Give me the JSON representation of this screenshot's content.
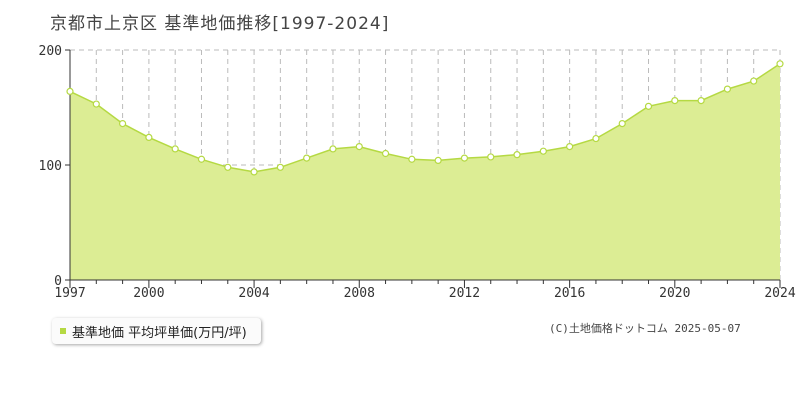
{
  "header": {
    "title": "京都市上京区 基準地価推移[1997-2024]"
  },
  "legend": {
    "label": "基準地価 平均坪単価(万円/坪)"
  },
  "footer": {
    "copyright": "(C)土地価格ドットコム 2025-05-07"
  },
  "colors": {
    "area_fill": "#dced94",
    "line": "#b5d943",
    "marker_fill": "#ffffff",
    "grid": "#bbbbbb"
  },
  "chart_data": {
    "type": "area",
    "title": "京都市上京区 基準地価推移[1997-2024]",
    "xlabel": "",
    "ylabel": "",
    "xlim": [
      1997,
      2024
    ],
    "ylim": [
      0,
      200
    ],
    "yticks": [
      0,
      100,
      200
    ],
    "xticks": [
      1997,
      2000,
      2004,
      2008,
      2012,
      2016,
      2020,
      2024
    ],
    "grid": true,
    "legend_position": "bottom-left",
    "series": [
      {
        "name": "基準地価 平均坪単価(万円/坪)",
        "x": [
          1997,
          1998,
          1999,
          2000,
          2001,
          2002,
          2003,
          2004,
          2005,
          2006,
          2007,
          2008,
          2009,
          2010,
          2011,
          2012,
          2013,
          2014,
          2015,
          2016,
          2017,
          2018,
          2019,
          2020,
          2021,
          2022,
          2023,
          2024
        ],
        "values": [
          164,
          153,
          136,
          124,
          114,
          105,
          98,
          94,
          98,
          106,
          114,
          116,
          110,
          105,
          104,
          106,
          107,
          109,
          112,
          116,
          123,
          136,
          151,
          156,
          156,
          166,
          173,
          188
        ]
      }
    ]
  }
}
